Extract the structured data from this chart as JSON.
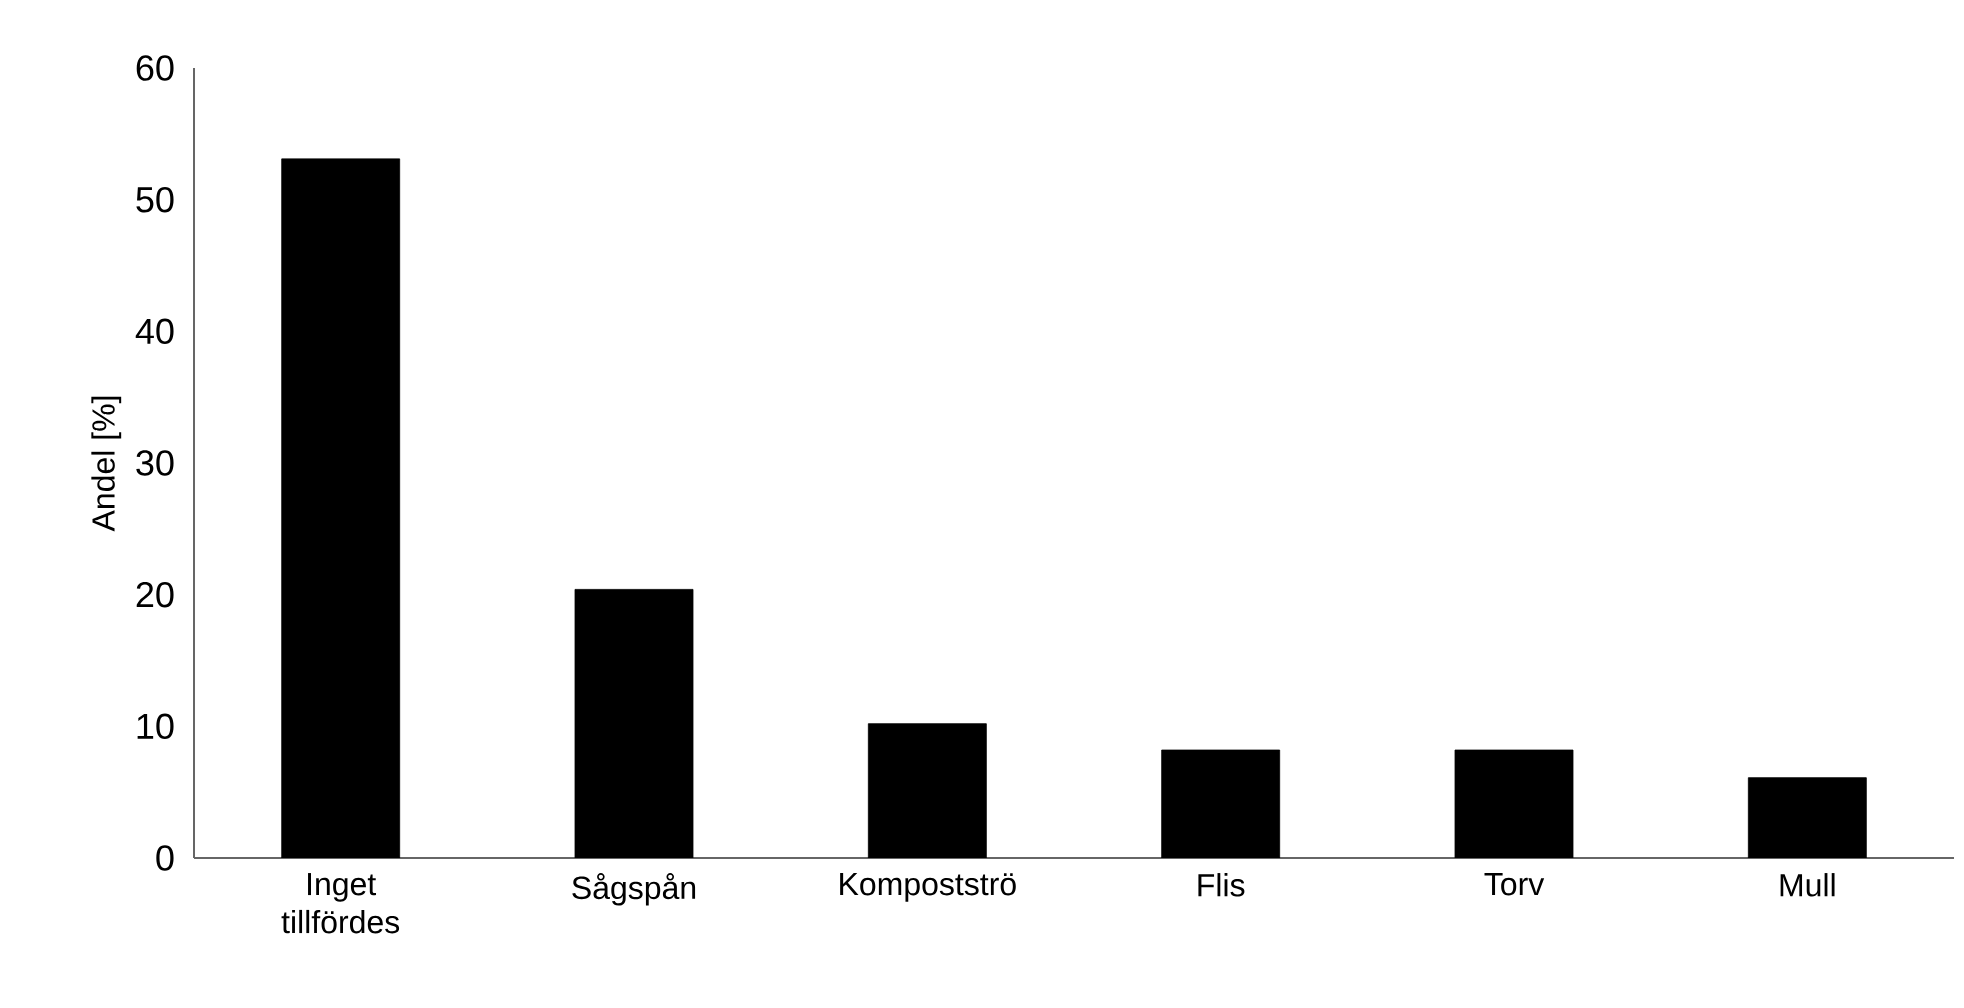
{
  "chart_data": {
    "type": "bar",
    "ylabel": "Andel [%]",
    "categories": [
      "Inget tillfördes",
      "Sågspån",
      "Kompostströ",
      "Flis",
      "Torv",
      "Mull"
    ],
    "values": [
      53.1,
      20.4,
      10.2,
      8.2,
      8.2,
      6.1
    ],
    "color": "#000000",
    "ylim": [
      0,
      60
    ],
    "yticks": [
      0,
      10,
      20,
      30,
      40,
      50,
      60
    ],
    "grid": false
  }
}
